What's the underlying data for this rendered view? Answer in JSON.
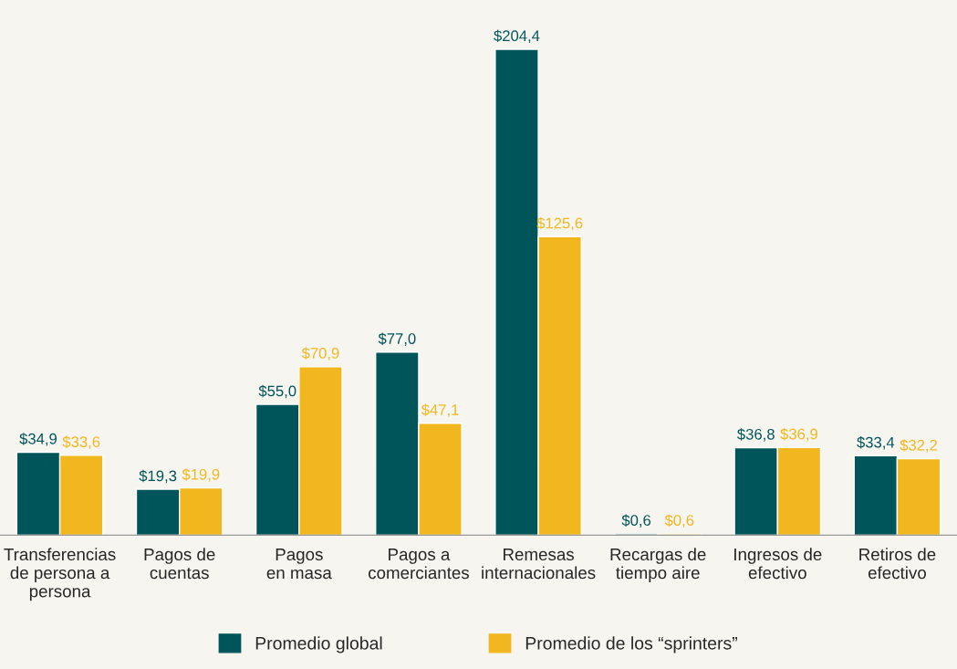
{
  "chart_data": {
    "type": "bar",
    "categories": [
      "Transferencias\nde persona a\npersona",
      "Pagos de\ncuentas",
      "Pagos\nen masa",
      "Pagos a\ncomerciantes",
      "Remesas\ninternacionales",
      "Recargas de\ntiempo aire",
      "Ingresos de\nefectivo",
      "Retiros de\nefectivo"
    ],
    "series": [
      {
        "name": "Promedio global",
        "color": "#00555a",
        "values": [
          34.9,
          19.3,
          55.0,
          77.0,
          204.4,
          0.6,
          36.8,
          33.4
        ],
        "value_labels": [
          "$34,9",
          "$19,3",
          "$55,0",
          "$77,0",
          "$204,4",
          "$0,6",
          "$36,8",
          "$33,4"
        ]
      },
      {
        "name": "Promedio de los “sprinters”",
        "color": "#f2b71f",
        "values": [
          33.6,
          19.9,
          70.9,
          47.1,
          125.6,
          0.6,
          36.9,
          32.2
        ],
        "value_labels": [
          "$33,6",
          "$19,9",
          "$70,9",
          "$47,1",
          "$125,6",
          "$0,6",
          "$36,9",
          "$32,2"
        ]
      }
    ],
    "legend": "bottom",
    "grid": false,
    "tick_labels": "x"
  }
}
